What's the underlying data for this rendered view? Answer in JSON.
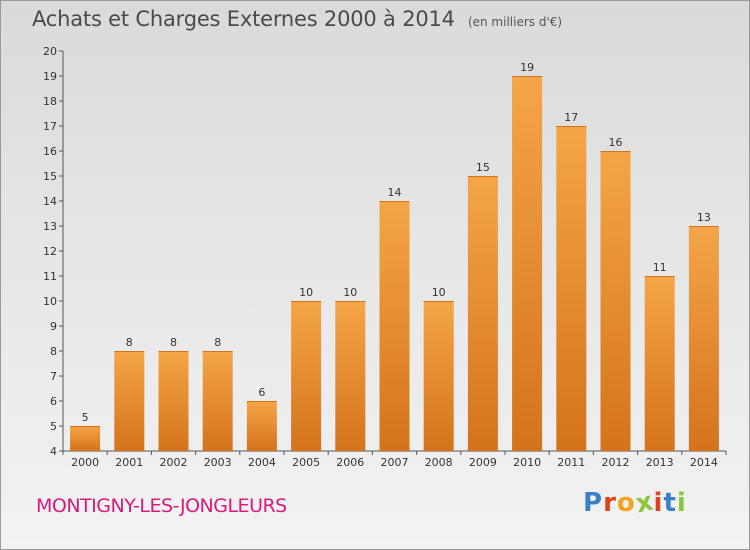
{
  "header": {
    "title": "Achats et Charges Externes 2000 à 2014",
    "unit": "(en milliers d'€)"
  },
  "footer": {
    "commune": "MONTIGNY-LES-JONGLEURS",
    "logo_letters": [
      "P",
      "r",
      "o",
      "x",
      "i",
      "t",
      "i"
    ],
    "logo_colors": [
      "#3a7fc8",
      "#e0421e",
      "#f2a21b",
      "#8cc63f",
      "#e0421e",
      "#3a7fc8",
      "#8cc63f"
    ]
  },
  "chart_data": {
    "type": "bar",
    "title": "Achats et Charges Externes 2000 à 2014",
    "subtitle": "(en milliers d'€)",
    "categories": [
      "2000",
      "2001",
      "2002",
      "2003",
      "2004",
      "2005",
      "2006",
      "2007",
      "2008",
      "2009",
      "2010",
      "2011",
      "2012",
      "2013",
      "2014"
    ],
    "values": [
      5,
      8,
      8,
      8,
      6,
      10,
      10,
      14,
      10,
      15,
      19,
      17,
      16,
      11,
      13
    ],
    "ylim": [
      4,
      20
    ],
    "yticks": [
      "4",
      "5",
      "6",
      "7",
      "8",
      "9",
      "10",
      "11",
      "12",
      "13",
      "14",
      "15",
      "16",
      "17",
      "18",
      "19",
      "20"
    ],
    "grid": false,
    "bar_color": "#f39a3b",
    "bar_color_dark": "#d4731c"
  }
}
